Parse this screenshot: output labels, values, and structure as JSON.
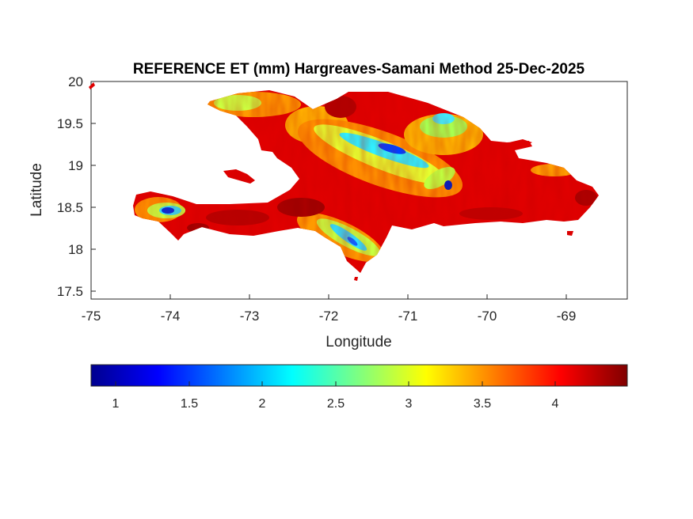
{
  "title": "REFERENCE ET (mm) Hargreaves-Samani Method  25-Dec-2025",
  "map": {
    "xlabel": "Longitude",
    "ylabel": "Latitude",
    "xlim": [
      -75,
      -68.25
    ],
    "ylim": [
      17.4,
      20
    ],
    "xticks": [
      "-75",
      "-74",
      "-73",
      "-72",
      "-71",
      "-70",
      "-69"
    ],
    "yticks": [
      "20",
      "19.5",
      "19",
      "18.5",
      "18",
      "17.5"
    ],
    "region": "Hispaniola (Haiti and Dominican Republic)",
    "grid": false
  },
  "colorbar": {
    "colormap": "jet",
    "range": [
      0.8,
      4.5
    ],
    "ticks": [
      "1",
      "1.5",
      "2",
      "2.5",
      "3",
      "3.5",
      "4"
    ],
    "orientation": "horizontal",
    "placement": "below"
  },
  "colors": {
    "dark_red": "#800000",
    "red": "#ff0000",
    "orange": "#ff8c00",
    "yellow": "#ffff00",
    "cyan": "#00ffff",
    "blue": "#0000ff",
    "dark_blue": "#00008f"
  }
}
